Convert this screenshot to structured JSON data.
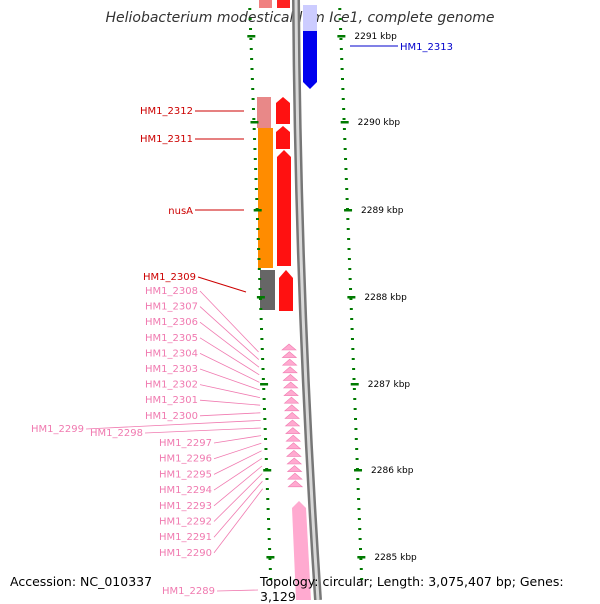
{
  "title": "Heliobacterium modesticaldum Ice1, complete genome",
  "accession": "Accession: NC_010337",
  "topology": "Topology: circular; Length: 3,075,407 bp; Genes: 3,129",
  "scale_labels": [
    "2291 kbp",
    "2290 kbp",
    "2289 kbp",
    "2288 kbp",
    "2287 kbp",
    "2286 kbp",
    "2285 kbp"
  ],
  "colors": {
    "dark_red": "#cc0000",
    "pink": "#f07ab0",
    "blue": "#0000cc",
    "tick": "#007a00",
    "gene_red": "#ff0000",
    "gene_orange": "#ff8c00",
    "gene_gray": "#666666",
    "gene_pink": "#ffaad0"
  },
  "gene_labels": {
    "upper": [
      {
        "name": "HM1_2313",
        "color": "blue"
      },
      {
        "name": "HM1_2312",
        "color": "dark_red"
      },
      {
        "name": "HM1_2311",
        "color": "dark_red"
      },
      {
        "name": "nusA",
        "color": "dark_red"
      },
      {
        "name": "HM1_2309",
        "color": "dark_red"
      }
    ],
    "pink_list": [
      "HM1_2308",
      "HM1_2307",
      "HM1_2306",
      "HM1_2305",
      "HM1_2304",
      "HM1_2303",
      "HM1_2302",
      "HM1_2301",
      "HM1_2300",
      "HM1_2299",
      "HM1_2298",
      "HM1_2297",
      "HM1_2296",
      "HM1_2295",
      "HM1_2294",
      "HM1_2293",
      "HM1_2292",
      "HM1_2291",
      "HM1_2290",
      "HM1_2289"
    ]
  }
}
